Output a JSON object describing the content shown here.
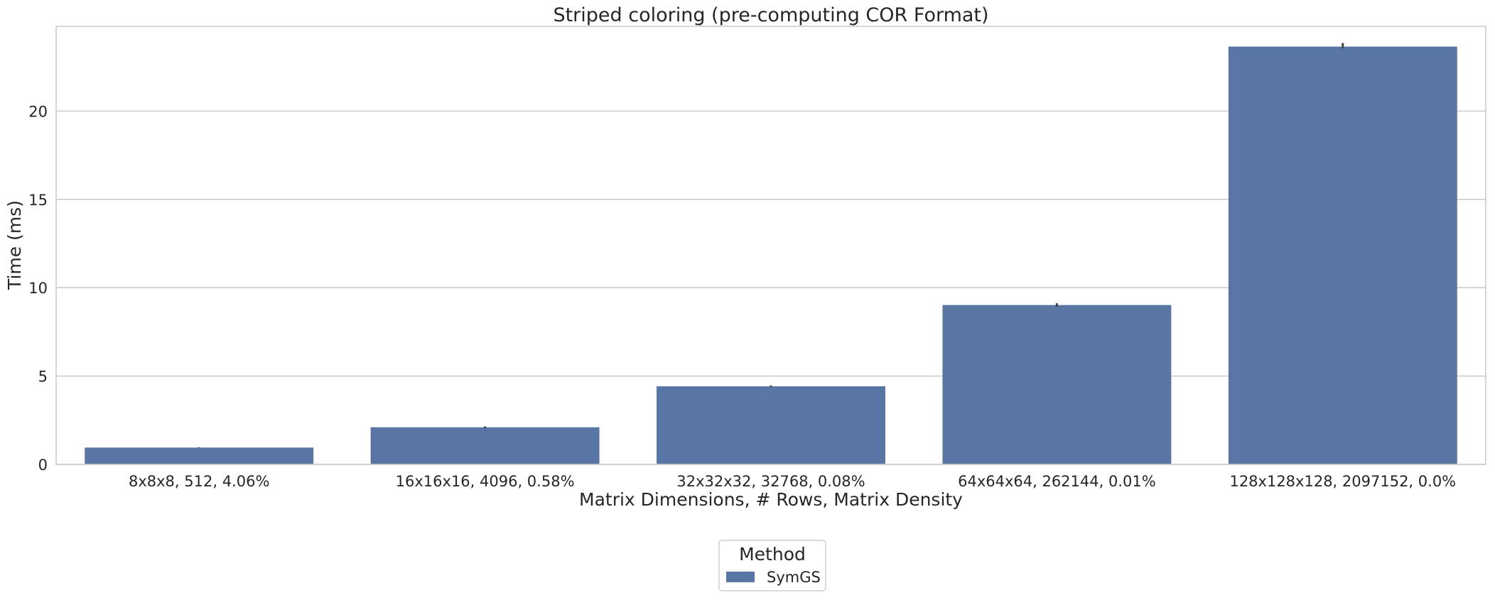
{
  "chart_data": {
    "type": "bar",
    "title": "Striped coloring (pre-computing COR Format)",
    "xlabel": "Matrix Dimensions, # Rows, Matrix Density",
    "ylabel": "Time (ms)",
    "categories": [
      "8x8x8, 512, 4.06%",
      "16x16x16, 4096, 0.58%",
      "32x32x32, 32768, 0.08%",
      "64x64x64, 262144, 0.01%",
      "128x128x128, 2097152, 0.0%"
    ],
    "series": [
      {
        "name": "SymGS",
        "values": [
          0.95,
          2.1,
          4.42,
          9.02,
          23.65
        ],
        "error_low": [
          0.93,
          2.05,
          4.38,
          8.93,
          23.55
        ],
        "error_high": [
          0.97,
          2.15,
          4.47,
          9.12,
          23.85
        ],
        "color": "#5975a4"
      }
    ],
    "ylim": [
      0,
      24.8
    ],
    "yticks": [
      0,
      5,
      10,
      15,
      20
    ],
    "grid": "horizontal",
    "legend": {
      "title": "Method",
      "placement": "bottom-center"
    }
  }
}
